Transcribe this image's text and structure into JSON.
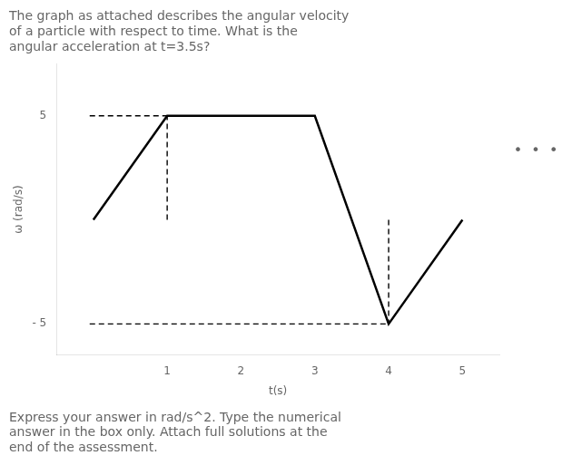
{
  "chart_data": {
    "type": "line",
    "title": [
      "The graph as attached describes the angular velocity",
      "of a particle with respect to time. What is the",
      "angular acceleration at t=3.5s?"
    ],
    "subtitle": [
      "Express your answer in rad/s^2. Type the numerical",
      "answer in the box only. Attach full solutions at the",
      "end of the assessment."
    ],
    "x_label": "t(s)",
    "y_label": "ω (rad/s)",
    "annotations": [
      {
        "text": "•  •  •"
      }
    ],
    "x": [
      0,
      1,
      3,
      4,
      5
    ],
    "series": [
      {
        "values": [
          0,
          5,
          5,
          -5,
          0
        ],
        "color": "#000000",
        "line_style": "solid"
      },
      {
        "x": [
          -0.05,
          1.0
        ],
        "values": [
          5,
          5
        ],
        "color": "#000000",
        "line_style": "dashed"
      },
      {
        "x": [
          1.0,
          1.0
        ],
        "values": [
          0,
          5
        ],
        "color": "#000000",
        "line_style": "dashed"
      },
      {
        "x": [
          -0.05,
          4.0
        ],
        "values": [
          -5,
          -5
        ],
        "color": "#000000",
        "line_style": "dashed"
      },
      {
        "x": [
          4.0,
          4.0
        ],
        "values": [
          0,
          -5
        ],
        "color": "#000000",
        "line_style": "dashed"
      }
    ],
    "xlim": [
      -0.5,
      5.5
    ],
    "ylim": [
      -6.5,
      7.5
    ],
    "xticks": [
      1,
      2,
      3,
      4,
      5
    ],
    "yticks": [
      {
        "value": -5,
        "label": "- 5"
      },
      5
    ],
    "grid": false
  }
}
